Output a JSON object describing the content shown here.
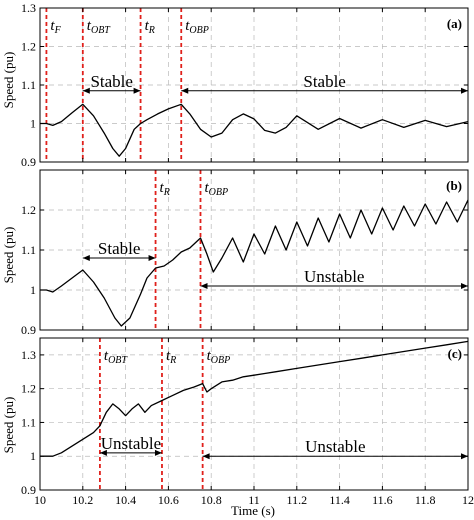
{
  "chart_data": {
    "type": "line",
    "xlabel": "Time (s)",
    "ylabel": "Speed (pu)",
    "xlim": [
      10,
      12
    ],
    "x_ticks": [
      "10",
      "10.2",
      "10.4",
      "10.6",
      "10.8",
      "11",
      "11.2",
      "11.4",
      "11.6",
      "11.8",
      "12"
    ],
    "grid": true,
    "panels": [
      {
        "panel_label": "(a)",
        "ylim": [
          0.9,
          1.3
        ],
        "y_ticks": [
          "0.9",
          "1",
          "1.1",
          "1.2",
          "1.3"
        ],
        "events": [
          {
            "name": "t",
            "sub": "F",
            "x": 10.03
          },
          {
            "name": "t",
            "sub": "OBT",
            "x": 10.2
          },
          {
            "name": "t",
            "sub": "R",
            "x": 10.47
          },
          {
            "name": "t",
            "sub": "OBP",
            "x": 10.66
          }
        ],
        "annotations": [
          {
            "text": "Stable",
            "x_start": 10.2,
            "x_end": 10.47,
            "y": 1.085
          },
          {
            "text": "Stable",
            "x_start": 10.66,
            "x_end": 12.0,
            "y": 1.085
          }
        ],
        "series": [
          {
            "x": [
              10.0,
              10.03,
              10.06,
              10.1,
              10.15,
              10.2,
              10.25,
              10.3,
              10.34,
              10.37,
              10.4,
              10.44,
              10.47,
              10.5,
              10.55,
              10.6,
              10.66,
              10.7,
              10.75,
              10.8,
              10.85,
              10.9,
              10.95,
              11.0,
              11.05,
              11.1,
              11.15,
              11.2,
              11.3,
              11.4,
              11.5,
              11.6,
              11.7,
              11.8,
              11.9,
              12.0
            ],
            "y": [
              1.0,
              1.0,
              0.995,
              1.005,
              1.028,
              1.05,
              1.02,
              0.975,
              0.935,
              0.915,
              0.935,
              0.985,
              1.0,
              1.01,
              1.025,
              1.038,
              1.05,
              1.025,
              0.985,
              0.965,
              0.975,
              1.01,
              1.025,
              1.012,
              0.982,
              0.975,
              0.99,
              1.02,
              0.985,
              1.013,
              0.988,
              1.01,
              0.99,
              1.008,
              0.992,
              1.005
            ]
          }
        ]
      },
      {
        "panel_label": "(b)",
        "ylim": [
          0.9,
          1.3
        ],
        "y_ticks": [
          "0.9",
          "1",
          "1.1",
          "1.2"
        ],
        "events": [
          {
            "name": "t",
            "sub": "R",
            "x": 10.54
          },
          {
            "name": "t",
            "sub": "OBP",
            "x": 10.75
          }
        ],
        "annotations": [
          {
            "text": "Stable",
            "x_start": 10.2,
            "x_end": 10.54,
            "y": 1.08
          },
          {
            "text": "Unstable",
            "x_start": 10.75,
            "x_end": 12.0,
            "y": 1.01
          }
        ],
        "series": [
          {
            "x": [
              10.0,
              10.03,
              10.06,
              10.1,
              10.15,
              10.2,
              10.25,
              10.3,
              10.35,
              10.38,
              10.42,
              10.47,
              10.5,
              10.54,
              10.58,
              10.62,
              10.66,
              10.7,
              10.75,
              10.78,
              10.81,
              10.85,
              10.9,
              10.95,
              11.0,
              11.05,
              11.1,
              11.15,
              11.2,
              11.25,
              11.3,
              11.35,
              11.4,
              11.45,
              11.5,
              11.55,
              11.6,
              11.65,
              11.7,
              11.75,
              11.8,
              11.85,
              11.9,
              11.95,
              12.0
            ],
            "y": [
              1.0,
              1.0,
              0.995,
              1.01,
              1.03,
              1.05,
              1.02,
              0.98,
              0.93,
              0.91,
              0.93,
              0.99,
              1.03,
              1.055,
              1.06,
              1.075,
              1.095,
              1.105,
              1.13,
              1.09,
              1.045,
              1.08,
              1.13,
              1.07,
              1.14,
              1.09,
              1.16,
              1.1,
              1.17,
              1.11,
              1.18,
              1.12,
              1.19,
              1.13,
              1.2,
              1.14,
              1.205,
              1.15,
              1.21,
              1.16,
              1.215,
              1.165,
              1.22,
              1.17,
              1.225
            ]
          }
        ]
      },
      {
        "panel_label": "(c)",
        "ylim": [
          0.9,
          1.35
        ],
        "y_ticks": [
          "0.9",
          "1",
          "1.1",
          "1.2",
          "1.3"
        ],
        "events": [
          {
            "name": "t",
            "sub": "OBT",
            "x": 10.28
          },
          {
            "name": "t",
            "sub": "R",
            "x": 10.57
          },
          {
            "name": "t",
            "sub": "OBP",
            "x": 10.76
          }
        ],
        "annotations": [
          {
            "text": "Unstable",
            "x_start": 10.28,
            "x_end": 10.57,
            "y": 1.01
          },
          {
            "text": "Unstable",
            "x_start": 10.76,
            "x_end": 12.0,
            "y": 1.0
          }
        ],
        "series": [
          {
            "x": [
              10.0,
              10.03,
              10.06,
              10.1,
              10.15,
              10.2,
              10.25,
              10.28,
              10.31,
              10.34,
              10.37,
              10.4,
              10.43,
              10.46,
              10.49,
              10.52,
              10.57,
              10.62,
              10.67,
              10.72,
              10.76,
              10.78,
              10.8,
              10.85,
              10.9,
              10.95,
              11.0,
              11.05,
              11.1,
              11.2,
              11.3,
              11.4,
              11.5,
              11.6,
              11.7,
              11.8,
              11.9,
              12.0
            ],
            "y": [
              1.0,
              1.0,
              1.0,
              1.01,
              1.03,
              1.05,
              1.07,
              1.09,
              1.13,
              1.155,
              1.14,
              1.12,
              1.14,
              1.155,
              1.13,
              1.15,
              1.165,
              1.18,
              1.195,
              1.205,
              1.215,
              1.19,
              1.2,
              1.22,
              1.225,
              1.235,
              1.24,
              1.245,
              1.25,
              1.26,
              1.27,
              1.28,
              1.29,
              1.3,
              1.31,
              1.32,
              1.33,
              1.34
            ]
          }
        ]
      }
    ]
  }
}
